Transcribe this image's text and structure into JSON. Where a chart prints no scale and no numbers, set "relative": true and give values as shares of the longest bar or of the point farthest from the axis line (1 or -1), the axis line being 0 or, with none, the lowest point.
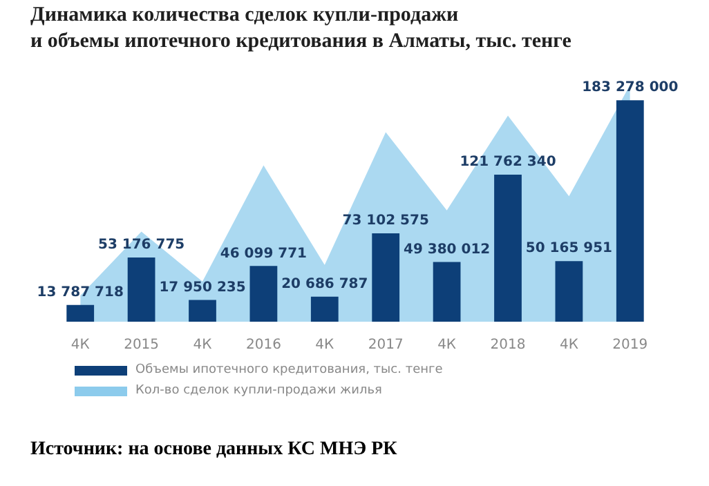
{
  "chart_data": [
    {
      "type": "bar",
      "title": "Динамика количества сделок купли-продажи\nи объемы ипотечного кредитования в Алматы, тыс. тенге",
      "categories": [
        "4К",
        "2015",
        "4К",
        "2016",
        "4К",
        "2017",
        "4К",
        "2018",
        "4К",
        "2019"
      ],
      "series": [
        {
          "name": "Объемы ипотечного кредитования, тыс. тенге",
          "color": "#0d3f78",
          "values": [
            13787718,
            53176775,
            17950235,
            46099771,
            20686787,
            73102575,
            49380012,
            121762340,
            50165951,
            183278000
          ],
          "value_labels": [
            "13 787 718",
            "53 176 775",
            "17 950 235",
            "46 099 771",
            "20 686 787",
            "73 102 575",
            "49 380 012",
            "121 762 340",
            "50 165 951",
            "183 278 000"
          ]
        }
      ],
      "legend": "bottom left",
      "annotations": [
        "Источник: на основе данных КС МНЭ РК"
      ]
    },
    {
      "type": "area",
      "categories": [
        null,
        null,
        null,
        null,
        null,
        null,
        null,
        null,
        null,
        null
      ],
      "series": [
        {
          "name": "Кол-во сделок купли-продажи жилья",
          "color": "#8ccbec",
          "values": [
            0.11,
            0.38,
            0.17,
            0.66,
            0.24,
            0.8,
            0.47,
            0.87,
            0.53,
            1
          ]
        }
      ],
      "relative": true,
      "tick_labels": false,
      "legend": "bottom left"
    }
  ]
}
